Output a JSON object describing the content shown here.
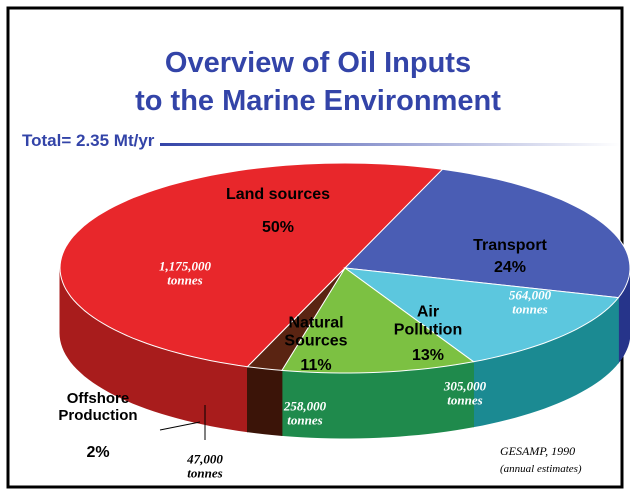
{
  "chart_data": {
    "type": "pie",
    "title": [
      "Overview of Oil Inputs",
      "to the Marine Environment"
    ],
    "subtitle": "Total= 2.35 Mt/yr",
    "categories": [
      "Land sources",
      "Transport",
      "Air Pollution",
      "Natural Sources",
      "Offshore Production"
    ],
    "values": [
      50,
      24,
      13,
      11,
      2
    ],
    "value_labels": [
      "50%",
      "24%",
      "13%",
      "11%",
      "2%"
    ],
    "amount_labels": [
      "1,175,000",
      "564,000",
      "305,000",
      "258,000",
      "47,000"
    ],
    "amount_unit": "tonnes",
    "colors": [
      "#e8272b",
      "#4a5db4",
      "#5cc7de",
      "#7cc142",
      "#5a2412"
    ],
    "side_colors": [
      "#a81c1c",
      "#26348a",
      "#1b8a92",
      "#1f8a4c",
      "#3b1408"
    ],
    "source": [
      "GESAMP, 1990",
      "(annual estimates)"
    ]
  }
}
